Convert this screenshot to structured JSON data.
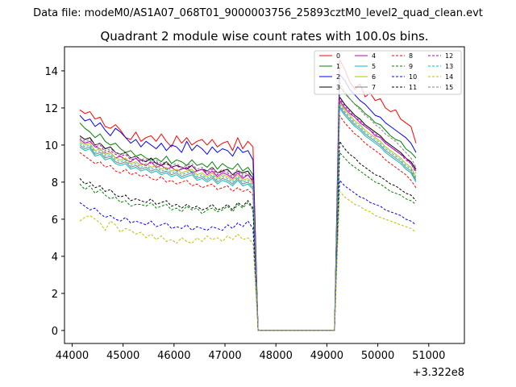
{
  "figure": {
    "suptitle": "Data file: modeM0/AS1A07_068T01_9000003756_25893cztM0_level2_quad_clean.evt"
  },
  "chart_data": {
    "type": "line",
    "title": "Quadrant 2 module wise count rates with 100.0s bins.",
    "xlabel": "",
    "ylabel": "",
    "x_offset_label": "+3.322e8",
    "xlim": [
      43850,
      51700
    ],
    "ylim": [
      -0.7,
      15.3
    ],
    "x_ticks": [
      44000,
      45000,
      46000,
      47000,
      48000,
      49000,
      50000,
      51000
    ],
    "y_ticks": [
      0,
      2,
      4,
      6,
      8,
      10,
      12,
      14
    ],
    "grid": false,
    "legend_location": "top-right",
    "x_start": 44150,
    "x_step": 100,
    "series": [
      {
        "name": "0",
        "color": "#ff0000",
        "dashed": false,
        "values": [
          11.9,
          11.7,
          11.8,
          11.4,
          11.5,
          11.0,
          10.9,
          11.1,
          10.8,
          10.4,
          10.3,
          10.7,
          10.2,
          10.4,
          10.5,
          10.2,
          10.6,
          10.2,
          9.9,
          10.5,
          10.1,
          10.4,
          10.0,
          10.2,
          10.3,
          10.0,
          10.3,
          9.9,
          10.1,
          10.2,
          9.7,
          10.4,
          9.8,
          10.2,
          9.9,
          0,
          0,
          0,
          0,
          0,
          0,
          0,
          0,
          0,
          0,
          0,
          0,
          0,
          0,
          0,
          0,
          14.6,
          14.1,
          13.4,
          13.0,
          13.3,
          12.6,
          12.8,
          12.4,
          12.5,
          12.0,
          11.8,
          11.9,
          11.4,
          11.2,
          11.0,
          10.1
        ]
      },
      {
        "name": "1",
        "color": "#008000",
        "dashed": false,
        "values": [
          11.2,
          10.9,
          10.7,
          10.4,
          10.6,
          10.2,
          10.0,
          10.1,
          9.8,
          9.6,
          9.7,
          9.4,
          9.5,
          9.3,
          9.2,
          9.3,
          9.1,
          9.4,
          9.0,
          9.2,
          9.1,
          8.9,
          9.2,
          8.9,
          9.0,
          8.8,
          9.1,
          8.7,
          9.0,
          8.8,
          8.7,
          9.0,
          8.6,
          8.8,
          8.4,
          0,
          0,
          0,
          0,
          0,
          0,
          0,
          0,
          0,
          0,
          0,
          0,
          0,
          0,
          0,
          0,
          13.2,
          12.8,
          12.5,
          12.2,
          12.0,
          11.7,
          11.5,
          11.2,
          11.1,
          10.8,
          10.5,
          10.3,
          10.2,
          9.8,
          9.6,
          9.3
        ]
      },
      {
        "name": "2",
        "color": "#0000ff",
        "dashed": false,
        "values": [
          11.6,
          11.3,
          11.4,
          11.0,
          11.2,
          10.8,
          10.5,
          10.9,
          10.7,
          10.4,
          10.1,
          10.3,
          9.9,
          10.2,
          10.0,
          9.8,
          10.1,
          9.7,
          10.0,
          9.9,
          9.6,
          10.2,
          9.7,
          10.0,
          9.8,
          9.5,
          9.9,
          9.6,
          9.8,
          9.7,
          9.4,
          9.9,
          9.6,
          9.7,
          9.2,
          0,
          0,
          0,
          0,
          0,
          0,
          0,
          0,
          0,
          0,
          0,
          0,
          0,
          0,
          0,
          0,
          13.8,
          13.5,
          13.0,
          12.7,
          12.4,
          12.2,
          11.9,
          11.6,
          11.5,
          11.2,
          11.0,
          10.8,
          10.6,
          10.4,
          10.1,
          9.6
        ]
      },
      {
        "name": "3",
        "color": "#000000",
        "dashed": false,
        "values": [
          10.5,
          10.3,
          10.4,
          10.0,
          10.1,
          9.8,
          9.9,
          9.6,
          9.5,
          9.6,
          9.3,
          9.4,
          9.2,
          9.1,
          9.3,
          9.0,
          8.9,
          9.1,
          8.8,
          8.9,
          8.8,
          8.7,
          8.9,
          8.6,
          8.7,
          8.6,
          8.8,
          8.5,
          8.6,
          8.7,
          8.4,
          8.6,
          8.5,
          8.6,
          8.2,
          0,
          0,
          0,
          0,
          0,
          0,
          0,
          0,
          0,
          0,
          0,
          0,
          0,
          0,
          0,
          0,
          12.6,
          12.2,
          11.9,
          11.6,
          11.4,
          11.1,
          10.9,
          10.7,
          10.5,
          10.2,
          10.0,
          9.8,
          9.6,
          9.3,
          9.1,
          8.7
        ]
      },
      {
        "name": "4",
        "color": "#bf00bf",
        "dashed": false,
        "values": [
          10.3,
          10.1,
          10.2,
          9.9,
          9.8,
          9.5,
          9.6,
          9.3,
          9.4,
          9.2,
          9.1,
          9.3,
          9.0,
          8.9,
          9.1,
          8.8,
          8.9,
          8.7,
          8.8,
          8.6,
          8.7,
          8.8,
          8.5,
          8.6,
          8.7,
          8.4,
          8.6,
          8.3,
          8.5,
          8.4,
          8.2,
          8.5,
          8.2,
          8.4,
          8.0,
          0,
          0,
          0,
          0,
          0,
          0,
          0,
          0,
          0,
          0,
          0,
          0,
          0,
          0,
          0,
          0,
          12.4,
          12.0,
          11.7,
          11.5,
          11.2,
          11.0,
          10.8,
          10.5,
          10.4,
          10.1,
          9.9,
          9.7,
          9.5,
          9.3,
          9.0,
          8.6
        ]
      },
      {
        "name": "5",
        "color": "#00bfbf",
        "dashed": false,
        "values": [
          9.9,
          9.7,
          9.8,
          9.4,
          9.5,
          9.2,
          9.3,
          9.0,
          8.9,
          9.0,
          8.7,
          8.8,
          8.6,
          8.7,
          8.5,
          8.6,
          8.4,
          8.5,
          8.3,
          8.4,
          8.2,
          8.3,
          8.4,
          8.1,
          8.2,
          8.0,
          8.2,
          7.9,
          8.1,
          8.0,
          7.8,
          8.1,
          7.8,
          7.9,
          7.6,
          0,
          0,
          0,
          0,
          0,
          0,
          0,
          0,
          0,
          0,
          0,
          0,
          0,
          0,
          0,
          0,
          12.0,
          11.6,
          11.3,
          11.0,
          10.8,
          10.5,
          10.3,
          10.1,
          9.9,
          9.6,
          9.4,
          9.2,
          9.0,
          8.7,
          8.5,
          8.0
        ]
      },
      {
        "name": "6",
        "color": "#bfbf00",
        "dashed": false,
        "values": [
          10.2,
          10.0,
          10.1,
          9.7,
          9.8,
          9.5,
          9.6,
          9.3,
          9.2,
          9.3,
          9.0,
          9.1,
          8.9,
          9.0,
          8.8,
          8.9,
          8.7,
          8.8,
          8.6,
          8.7,
          8.5,
          8.6,
          8.7,
          8.4,
          8.5,
          8.3,
          8.5,
          8.2,
          8.4,
          8.3,
          8.1,
          8.4,
          8.1,
          8.2,
          7.9,
          0,
          0,
          0,
          0,
          0,
          0,
          0,
          0,
          0,
          0,
          0,
          0,
          0,
          0,
          0,
          0,
          12.3,
          11.9,
          11.6,
          11.3,
          11.1,
          10.8,
          10.6,
          10.4,
          10.2,
          9.9,
          9.7,
          9.5,
          9.3,
          9.0,
          8.8,
          8.3
        ]
      },
      {
        "name": "7",
        "color": "#808080",
        "dashed": false,
        "values": [
          10.0,
          9.8,
          9.9,
          9.5,
          9.6,
          9.3,
          9.4,
          9.1,
          9.0,
          9.1,
          8.8,
          8.9,
          8.7,
          8.8,
          8.6,
          8.7,
          8.5,
          8.6,
          8.4,
          8.5,
          8.3,
          8.4,
          8.5,
          8.2,
          8.3,
          8.1,
          8.3,
          8.0,
          8.2,
          8.1,
          7.9,
          8.2,
          7.9,
          8.0,
          7.7,
          0,
          0,
          0,
          0,
          0,
          0,
          0,
          0,
          0,
          0,
          0,
          0,
          0,
          0,
          0,
          0,
          12.1,
          11.7,
          11.4,
          11.1,
          10.9,
          10.6,
          10.4,
          10.2,
          10.0,
          9.7,
          9.5,
          9.3,
          9.1,
          8.8,
          8.6,
          8.1
        ]
      },
      {
        "name": "8",
        "color": "#ff0000",
        "dashed": true,
        "values": [
          9.6,
          9.4,
          9.2,
          9.0,
          9.1,
          8.8,
          8.9,
          8.6,
          8.5,
          8.7,
          8.4,
          8.5,
          8.3,
          8.4,
          8.2,
          8.1,
          8.3,
          8.0,
          8.1,
          7.9,
          8.0,
          8.1,
          7.8,
          7.9,
          7.7,
          7.8,
          7.9,
          7.6,
          7.7,
          7.8,
          7.5,
          7.7,
          7.5,
          7.6,
          7.3,
          0,
          0,
          0,
          0,
          0,
          0,
          0,
          0,
          0,
          0,
          0,
          0,
          0,
          0,
          0,
          0,
          11.6,
          11.2,
          10.9,
          10.6,
          10.4,
          10.1,
          9.9,
          9.7,
          9.5,
          9.2,
          9.0,
          8.8,
          8.6,
          8.4,
          8.1,
          7.7
        ]
      },
      {
        "name": "9",
        "color": "#008000",
        "dashed": true,
        "values": [
          7.9,
          7.6,
          7.8,
          7.4,
          7.6,
          7.3,
          7.1,
          7.2,
          6.9,
          7.0,
          6.7,
          6.8,
          6.8,
          6.7,
          6.9,
          6.6,
          6.7,
          6.8,
          6.5,
          6.6,
          6.4,
          6.7,
          6.5,
          6.6,
          6.3,
          6.5,
          6.6,
          6.4,
          6.5,
          6.7,
          6.4,
          6.8,
          6.6,
          6.9,
          6.5,
          0,
          0,
          0,
          0,
          0,
          0,
          0,
          0,
          0,
          0,
          0,
          0,
          0,
          0,
          0,
          0,
          9.6,
          9.3,
          9.0,
          8.8,
          8.6,
          8.4,
          8.2,
          8.0,
          7.9,
          7.7,
          7.5,
          7.4,
          7.3,
          7.1,
          7.0,
          6.8
        ]
      },
      {
        "name": "10",
        "color": "#0000ff",
        "dashed": true,
        "values": [
          6.9,
          6.7,
          6.5,
          6.6,
          6.3,
          6.1,
          6.2,
          6.0,
          5.9,
          6.1,
          5.8,
          5.9,
          5.8,
          5.7,
          5.9,
          5.6,
          5.7,
          5.8,
          5.5,
          5.6,
          5.5,
          5.7,
          5.4,
          5.6,
          5.5,
          5.4,
          5.6,
          5.5,
          5.4,
          5.7,
          5.5,
          5.8,
          5.6,
          5.9,
          5.5,
          0,
          0,
          0,
          0,
          0,
          0,
          0,
          0,
          0,
          0,
          0,
          0,
          0,
          0,
          0,
          0,
          8.1,
          7.8,
          7.6,
          7.4,
          7.2,
          7.1,
          6.9,
          6.8,
          6.7,
          6.5,
          6.4,
          6.3,
          6.2,
          6.0,
          5.9,
          5.7
        ]
      },
      {
        "name": "11",
        "color": "#000000",
        "dashed": true,
        "values": [
          8.2,
          7.9,
          8.0,
          7.7,
          7.8,
          7.5,
          7.6,
          7.3,
          7.2,
          7.3,
          7.0,
          7.1,
          7.0,
          6.9,
          7.1,
          6.8,
          6.9,
          7.0,
          6.7,
          6.8,
          6.6,
          6.8,
          6.6,
          6.7,
          6.5,
          6.6,
          6.8,
          6.5,
          6.6,
          6.8,
          6.5,
          6.9,
          6.7,
          7.0,
          6.6,
          0,
          0,
          0,
          0,
          0,
          0,
          0,
          0,
          0,
          0,
          0,
          0,
          0,
          0,
          0,
          0,
          10.2,
          9.8,
          9.5,
          9.3,
          9.0,
          8.8,
          8.6,
          8.4,
          8.3,
          8.1,
          7.9,
          7.8,
          7.6,
          7.4,
          7.3,
          7.0
        ]
      },
      {
        "name": "12",
        "color": "#bf00bf",
        "dashed": true,
        "values": [
          10.3,
          10.1,
          10.2,
          9.9,
          10.0,
          9.6,
          9.7,
          9.5,
          9.4,
          9.5,
          9.2,
          9.3,
          9.1,
          9.2,
          9.0,
          9.1,
          8.9,
          9.0,
          8.8,
          8.9,
          8.7,
          8.8,
          8.9,
          8.6,
          8.7,
          8.5,
          8.7,
          8.4,
          8.6,
          8.5,
          8.3,
          8.6,
          8.3,
          8.4,
          8.1,
          0,
          0,
          0,
          0,
          0,
          0,
          0,
          0,
          0,
          0,
          0,
          0,
          0,
          0,
          0,
          0,
          12.5,
          12.1,
          11.8,
          11.5,
          11.3,
          11.0,
          10.8,
          10.6,
          10.4,
          10.1,
          9.9,
          9.7,
          9.5,
          9.2,
          9.0,
          8.5
        ]
      },
      {
        "name": "13",
        "color": "#00bfbf",
        "dashed": true,
        "values": [
          10.1,
          9.9,
          10.0,
          9.6,
          9.7,
          9.4,
          9.5,
          9.2,
          9.1,
          9.2,
          8.9,
          9.0,
          8.8,
          8.9,
          8.7,
          8.8,
          8.6,
          8.7,
          8.5,
          8.6,
          8.4,
          8.5,
          8.6,
          8.3,
          8.4,
          8.2,
          8.4,
          8.1,
          8.3,
          8.2,
          8.0,
          8.3,
          8.0,
          8.1,
          7.8,
          0,
          0,
          0,
          0,
          0,
          0,
          0,
          0,
          0,
          0,
          0,
          0,
          0,
          0,
          0,
          0,
          12.2,
          11.8,
          11.5,
          11.2,
          11.0,
          10.7,
          10.5,
          10.3,
          10.1,
          9.8,
          9.6,
          9.4,
          9.2,
          8.9,
          8.7,
          8.2
        ]
      },
      {
        "name": "14",
        "color": "#bfbf00",
        "dashed": true,
        "values": [
          5.9,
          6.1,
          6.2,
          6.0,
          5.8,
          5.4,
          5.9,
          5.7,
          5.3,
          5.5,
          5.4,
          5.2,
          5.3,
          5.0,
          5.2,
          4.9,
          5.1,
          4.8,
          4.9,
          4.7,
          5.0,
          4.8,
          4.7,
          5.0,
          4.8,
          5.1,
          4.9,
          5.0,
          4.8,
          5.1,
          4.9,
          5.2,
          4.9,
          5.0,
          4.7,
          0,
          0,
          0,
          0,
          0,
          0,
          0,
          0,
          0,
          0,
          0,
          0,
          0,
          0,
          0,
          0,
          7.5,
          7.2,
          7.0,
          6.8,
          6.7,
          6.5,
          6.4,
          6.2,
          6.1,
          6.0,
          5.9,
          5.8,
          5.7,
          5.6,
          5.5,
          5.3
        ]
      },
      {
        "name": "15",
        "color": "#808080",
        "dashed": true,
        "values": [
          10.4,
          10.2,
          10.3,
          10.0,
          10.1,
          9.7,
          9.8,
          9.6,
          9.5,
          9.6,
          9.3,
          9.4,
          9.2,
          9.3,
          9.1,
          9.2,
          9.0,
          9.1,
          8.9,
          9.0,
          8.8,
          8.9,
          9.0,
          8.7,
          8.8,
          8.6,
          8.8,
          8.5,
          8.7,
          8.6,
          8.4,
          8.7,
          8.4,
          8.5,
          8.2,
          0,
          0,
          0,
          0,
          0,
          0,
          0,
          0,
          0,
          0,
          0,
          0,
          0,
          0,
          0,
          0,
          13.4,
          12.9,
          12.5,
          12.2,
          11.9,
          11.6,
          11.4,
          11.1,
          10.9,
          10.6,
          10.4,
          10.2,
          9.9,
          9.6,
          9.3,
          8.8
        ]
      }
    ]
  }
}
